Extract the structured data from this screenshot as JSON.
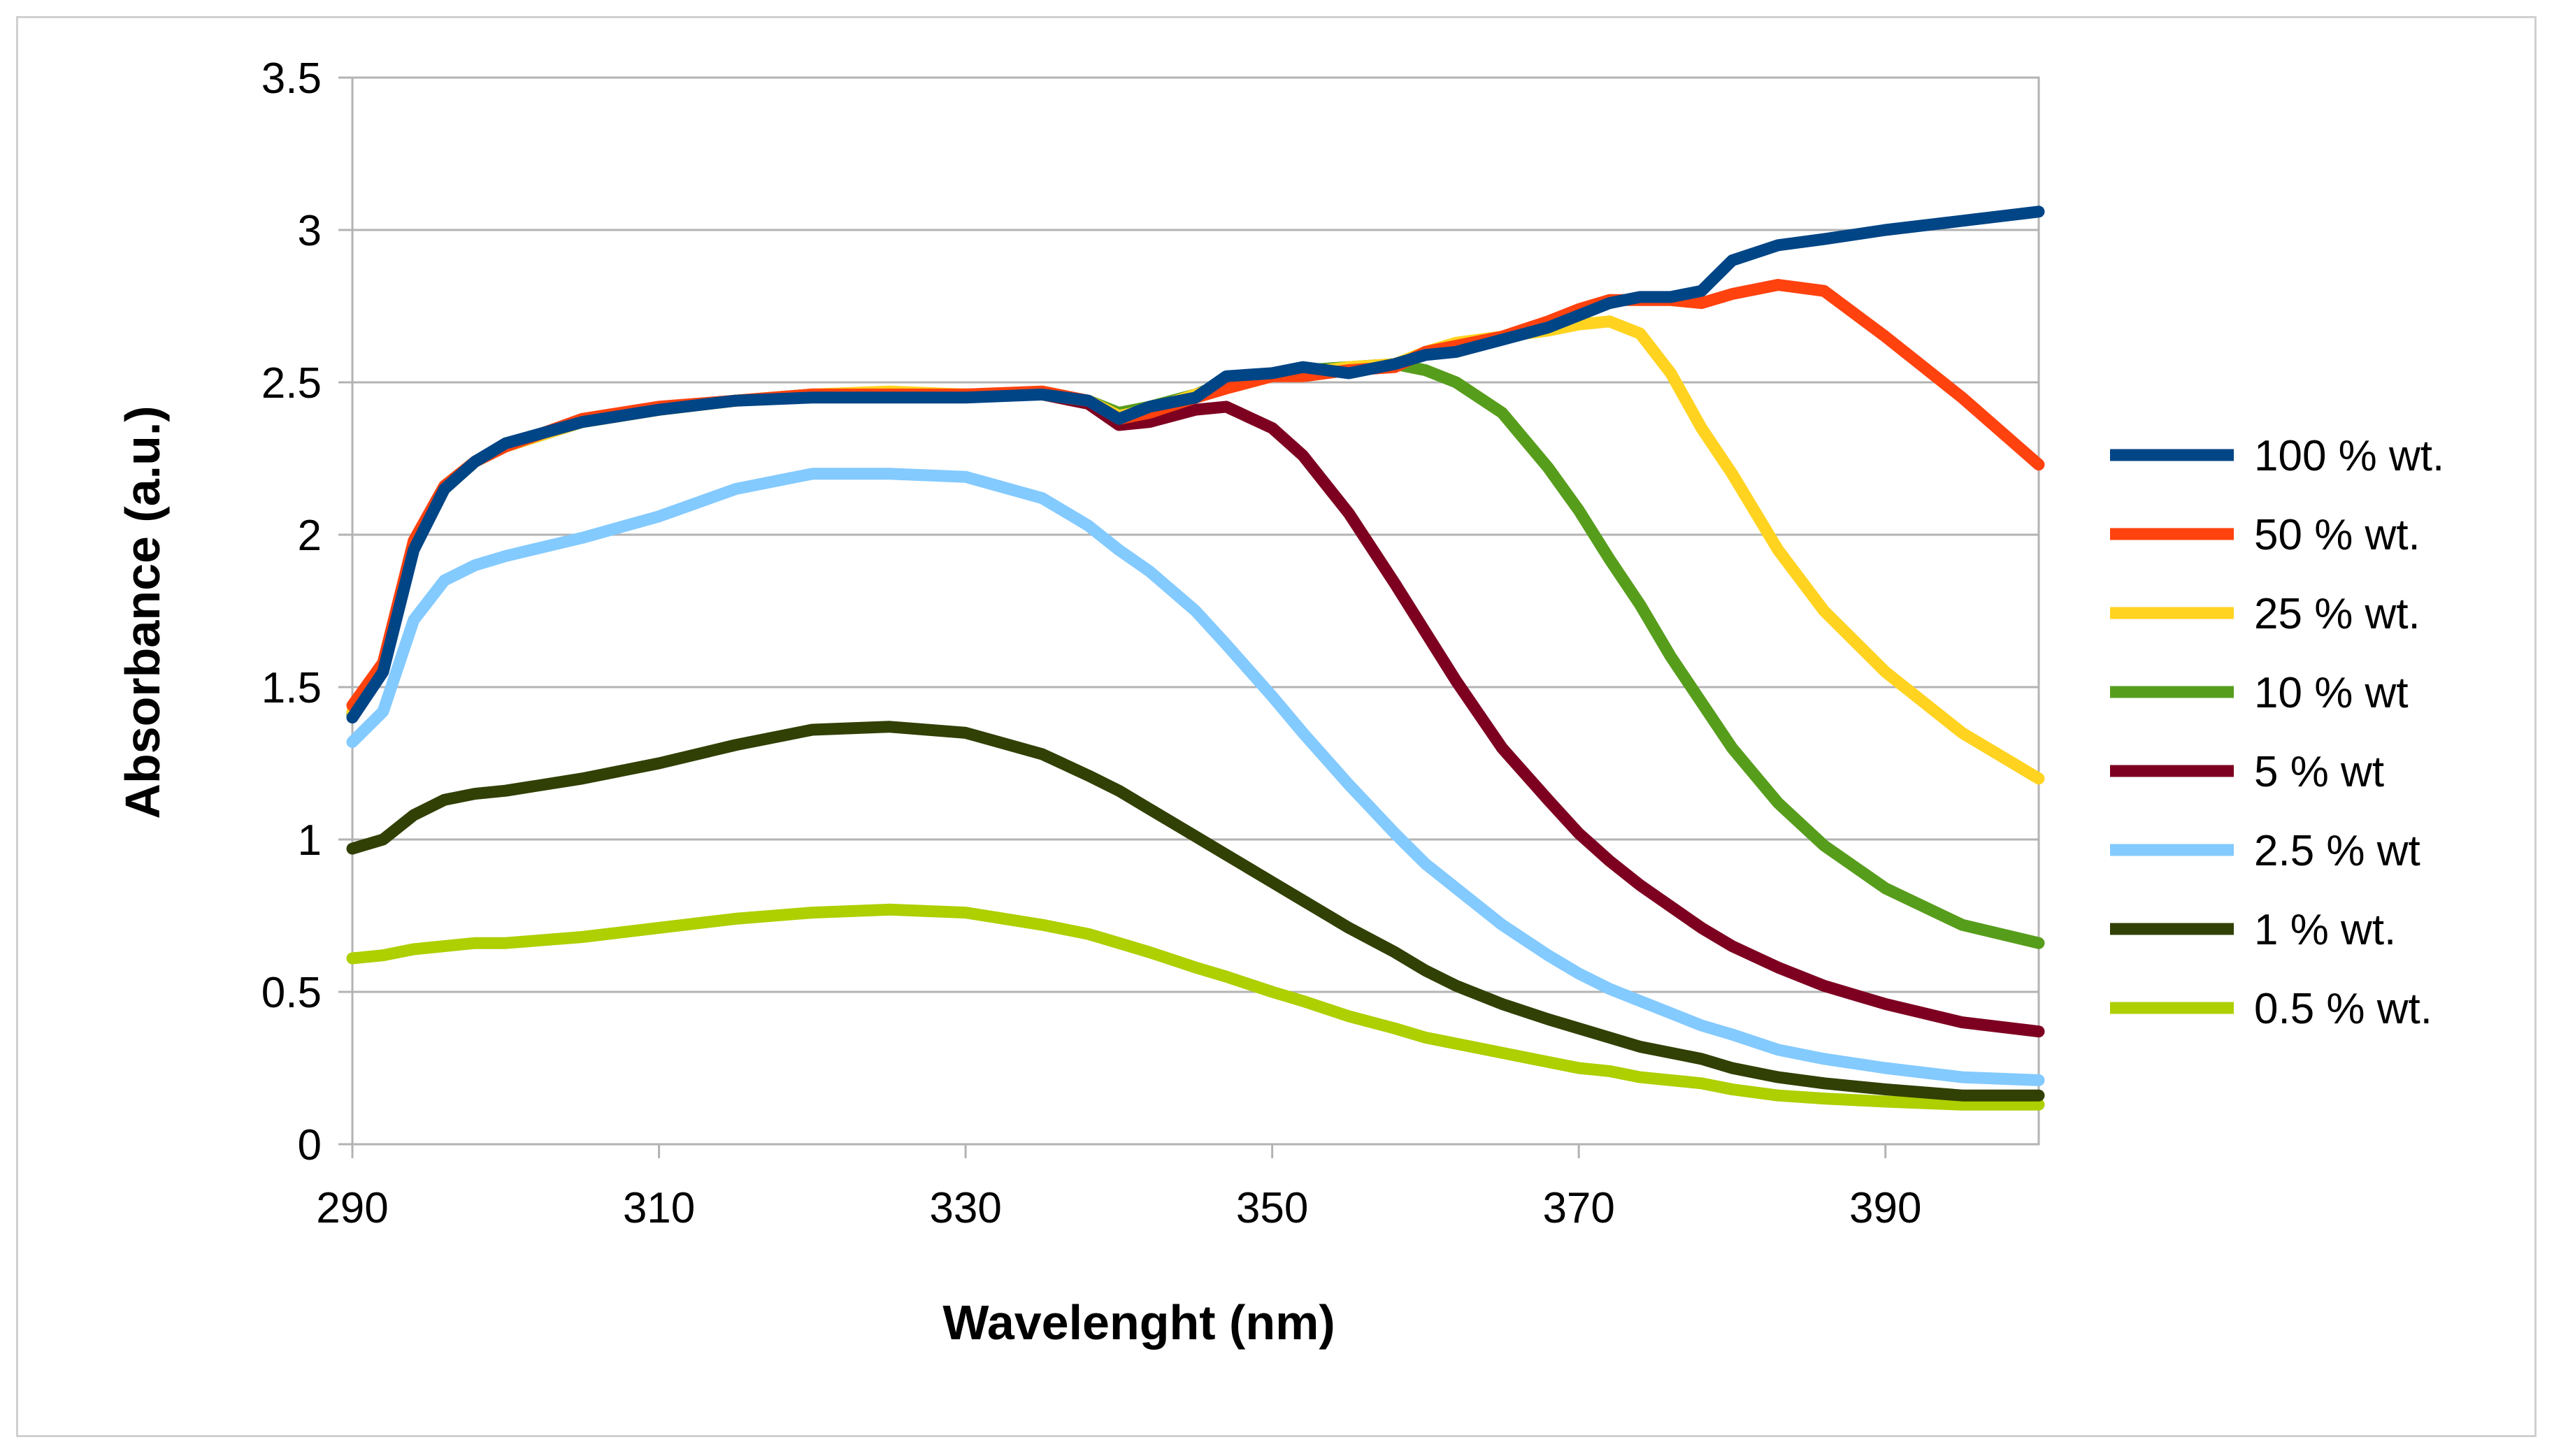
{
  "chart_data": {
    "type": "line",
    "title": "",
    "xlabel": "Wavelenght (nm)",
    "ylabel": "Absorbance (a.u.)",
    "xlim": [
      290,
      400
    ],
    "ylim": [
      0,
      3.5
    ],
    "xticks": [
      290,
      310,
      330,
      350,
      370,
      390
    ],
    "yticks": [
      0,
      0.5,
      1,
      1.5,
      2,
      2.5,
      3,
      3.5
    ],
    "grid": "horizontal",
    "legend_position": "right",
    "x": [
      290,
      292,
      294,
      296,
      298,
      300,
      305,
      310,
      315,
      320,
      325,
      330,
      335,
      338,
      340,
      342,
      345,
      347,
      350,
      352,
      355,
      358,
      360,
      362,
      365,
      368,
      370,
      372,
      374,
      376,
      378,
      380,
      383,
      386,
      390,
      395,
      400
    ],
    "series": [
      {
        "name": "100 % wt.",
        "color": "#004586",
        "values": [
          1.4,
          1.55,
          1.95,
          2.15,
          2.24,
          2.3,
          2.37,
          2.41,
          2.44,
          2.45,
          2.45,
          2.45,
          2.46,
          2.44,
          2.38,
          2.42,
          2.45,
          2.52,
          2.53,
          2.55,
          2.53,
          2.56,
          2.59,
          2.6,
          2.64,
          2.68,
          2.72,
          2.76,
          2.78,
          2.78,
          2.8,
          2.9,
          2.95,
          2.97,
          3.0,
          3.03,
          3.06
        ]
      },
      {
        "name": "50 % wt.",
        "color": "#ff420e",
        "values": [
          1.44,
          1.58,
          1.98,
          2.16,
          2.24,
          2.29,
          2.38,
          2.42,
          2.44,
          2.46,
          2.46,
          2.46,
          2.47,
          2.44,
          2.38,
          2.4,
          2.45,
          2.48,
          2.52,
          2.52,
          2.54,
          2.55,
          2.6,
          2.62,
          2.65,
          2.7,
          2.74,
          2.77,
          2.77,
          2.77,
          2.76,
          2.79,
          2.82,
          2.8,
          2.65,
          2.45,
          2.23
        ]
      },
      {
        "name": "25 % wt.",
        "color": "#ffd320",
        "values": [
          1.42,
          1.57,
          1.97,
          2.16,
          2.24,
          2.29,
          2.37,
          2.41,
          2.44,
          2.46,
          2.47,
          2.46,
          2.46,
          2.44,
          2.39,
          2.41,
          2.46,
          2.49,
          2.52,
          2.53,
          2.55,
          2.56,
          2.6,
          2.63,
          2.65,
          2.67,
          2.69,
          2.7,
          2.66,
          2.53,
          2.35,
          2.2,
          1.95,
          1.75,
          1.55,
          1.35,
          1.2
        ]
      },
      {
        "name": "10 % wt",
        "color": "#579d1c",
        "values": [
          1.41,
          1.56,
          1.96,
          2.15,
          2.24,
          2.29,
          2.37,
          2.41,
          2.44,
          2.46,
          2.46,
          2.46,
          2.46,
          2.44,
          2.4,
          2.42,
          2.46,
          2.5,
          2.52,
          2.54,
          2.55,
          2.56,
          2.54,
          2.5,
          2.4,
          2.22,
          2.08,
          1.92,
          1.77,
          1.6,
          1.45,
          1.3,
          1.12,
          0.98,
          0.84,
          0.72,
          0.66
        ]
      },
      {
        "name": "5 % wt",
        "color": "#7e0021",
        "values": [
          1.41,
          1.56,
          1.96,
          2.15,
          2.24,
          2.29,
          2.37,
          2.41,
          2.44,
          2.46,
          2.46,
          2.46,
          2.46,
          2.43,
          2.36,
          2.37,
          2.41,
          2.42,
          2.35,
          2.26,
          2.07,
          1.84,
          1.68,
          1.52,
          1.3,
          1.13,
          1.02,
          0.93,
          0.85,
          0.78,
          0.71,
          0.65,
          0.58,
          0.52,
          0.46,
          0.4,
          0.37
        ]
      },
      {
        "name": "2.5 % wt",
        "color": "#83caff",
        "values": [
          1.32,
          1.42,
          1.72,
          1.85,
          1.9,
          1.93,
          1.99,
          2.06,
          2.15,
          2.2,
          2.2,
          2.19,
          2.12,
          2.03,
          1.95,
          1.88,
          1.75,
          1.64,
          1.47,
          1.35,
          1.18,
          1.02,
          0.92,
          0.84,
          0.72,
          0.62,
          0.56,
          0.51,
          0.47,
          0.43,
          0.39,
          0.36,
          0.31,
          0.28,
          0.25,
          0.22,
          0.21
        ]
      },
      {
        "name": "1 % wt.",
        "color": "#314004",
        "values": [
          0.97,
          1.0,
          1.08,
          1.13,
          1.15,
          1.16,
          1.2,
          1.25,
          1.31,
          1.36,
          1.37,
          1.35,
          1.28,
          1.21,
          1.16,
          1.1,
          1.01,
          0.95,
          0.86,
          0.8,
          0.71,
          0.63,
          0.57,
          0.52,
          0.46,
          0.41,
          0.38,
          0.35,
          0.32,
          0.3,
          0.28,
          0.25,
          0.22,
          0.2,
          0.18,
          0.16,
          0.16
        ]
      },
      {
        "name": "0.5 % wt.",
        "color": "#aecf00",
        "values": [
          0.61,
          0.62,
          0.64,
          0.65,
          0.66,
          0.66,
          0.68,
          0.71,
          0.74,
          0.76,
          0.77,
          0.76,
          0.72,
          0.69,
          0.66,
          0.63,
          0.58,
          0.55,
          0.5,
          0.47,
          0.42,
          0.38,
          0.35,
          0.33,
          0.3,
          0.27,
          0.25,
          0.24,
          0.22,
          0.21,
          0.2,
          0.18,
          0.16,
          0.15,
          0.14,
          0.13,
          0.13
        ]
      }
    ]
  }
}
